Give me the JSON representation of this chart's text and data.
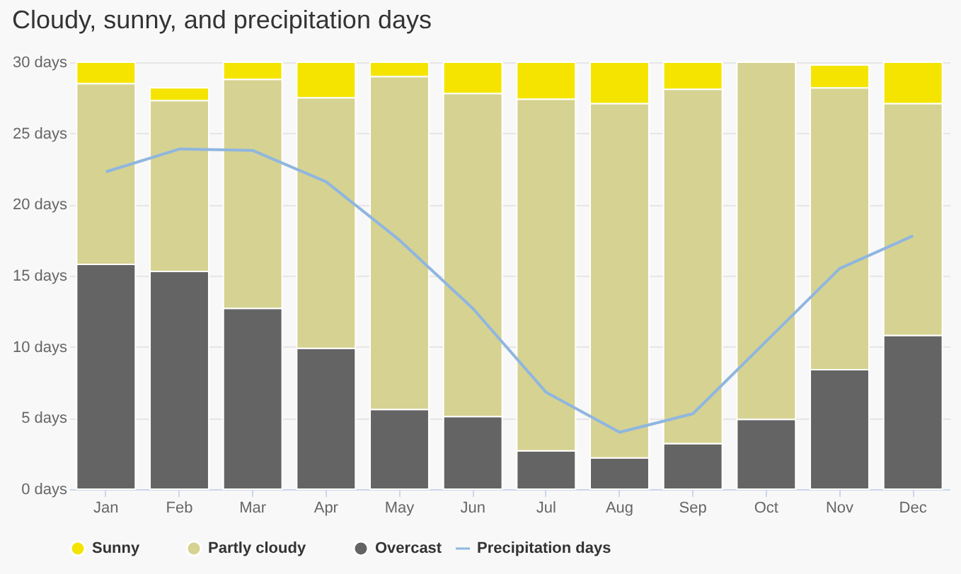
{
  "chart_data": {
    "type": "bar",
    "title": "Cloudy, sunny, and precipitation days",
    "stacked": true,
    "categories": [
      "Jan",
      "Feb",
      "Mar",
      "Apr",
      "May",
      "Jun",
      "Jul",
      "Aug",
      "Sep",
      "Oct",
      "Nov",
      "Dec"
    ],
    "series": [
      {
        "name": "Overcast",
        "color": "#646464",
        "values": [
          15.8,
          15.3,
          12.7,
          9.9,
          5.6,
          5.1,
          2.7,
          2.2,
          3.2,
          4.9,
          8.4,
          10.8
        ]
      },
      {
        "name": "Partly cloudy",
        "color": "#d6d291",
        "values": [
          12.7,
          12.0,
          16.1,
          17.6,
          23.4,
          22.7,
          24.7,
          24.9,
          24.9,
          25.1,
          19.8,
          16.3
        ]
      },
      {
        "name": "Sunny",
        "color": "#f5e400",
        "values": [
          1.5,
          0.9,
          1.2,
          2.5,
          1.0,
          2.2,
          2.6,
          2.9,
          1.9,
          0,
          1.6,
          2.9
        ]
      },
      {
        "name": "Precipitation days",
        "type": "line",
        "color": "#8fb6e0",
        "values": [
          22.3,
          23.9,
          23.8,
          21.6,
          17.5,
          12.7,
          6.8,
          4.0,
          5.3,
          10.4,
          15.5,
          17.8
        ]
      }
    ],
    "ylim": [
      0,
      30
    ],
    "yticks": [
      {
        "value": 0,
        "label": "0 days"
      },
      {
        "value": 5,
        "label": "5 days"
      },
      {
        "value": 10,
        "label": "10 days"
      },
      {
        "value": 15,
        "label": "15 days"
      },
      {
        "value": 20,
        "label": "20 days"
      },
      {
        "value": 25,
        "label": "25 days"
      },
      {
        "value": 30,
        "label": "30 days"
      }
    ],
    "grid": "y",
    "legend": "bottom",
    "marker": "none",
    "line_style": "solid"
  }
}
